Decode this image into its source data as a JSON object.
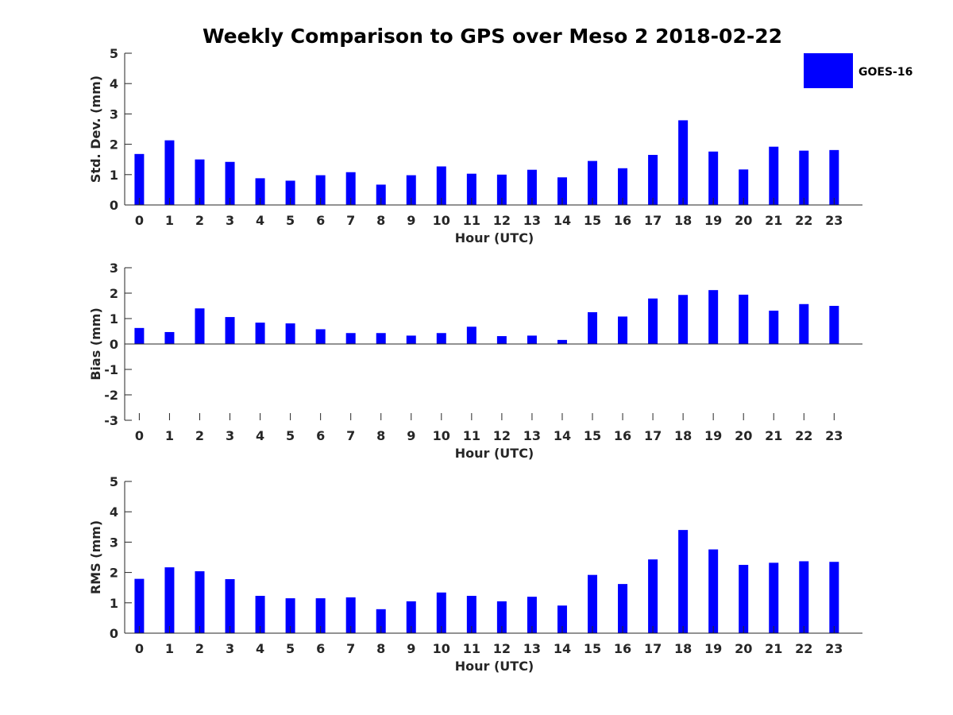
{
  "title": "Weekly Comparison to GPS over Meso 2 2018-02-22",
  "legend": {
    "label": "GOES-16",
    "placement": "top-right"
  },
  "colors": {
    "bar": "#0000FF",
    "axis": "#262626"
  },
  "chart_data": [
    {
      "type": "bar",
      "name": "std_dev",
      "xlabel": "Hour (UTC)",
      "ylabel": "Std. Dev. (mm)",
      "categories": [
        "0",
        "1",
        "2",
        "3",
        "4",
        "5",
        "6",
        "7",
        "8",
        "9",
        "10",
        "11",
        "12",
        "13",
        "14",
        "15",
        "16",
        "17",
        "18",
        "19",
        "20",
        "21",
        "22",
        "23"
      ],
      "series": [
        {
          "name": "GOES-16",
          "values": [
            1.68,
            2.13,
            1.5,
            1.42,
            0.88,
            0.8,
            0.98,
            1.08,
            0.67,
            0.98,
            1.27,
            1.03,
            1.0,
            1.16,
            0.91,
            1.45,
            1.21,
            1.65,
            2.79,
            1.76,
            1.17,
            1.92,
            1.79,
            1.81
          ]
        }
      ],
      "ylim": [
        0,
        5
      ],
      "yticks": [
        0,
        1,
        2,
        3,
        4,
        5
      ],
      "grid": false
    },
    {
      "type": "bar",
      "name": "bias",
      "xlabel": "Hour (UTC)",
      "ylabel": "Bias (mm)",
      "categories": [
        "0",
        "1",
        "2",
        "3",
        "4",
        "5",
        "6",
        "7",
        "8",
        "9",
        "10",
        "11",
        "12",
        "13",
        "14",
        "15",
        "16",
        "17",
        "18",
        "19",
        "20",
        "21",
        "22",
        "23"
      ],
      "series": [
        {
          "name": "GOES-16",
          "values": [
            0.63,
            0.47,
            1.4,
            1.06,
            0.84,
            0.81,
            0.58,
            0.43,
            0.43,
            0.33,
            0.43,
            0.68,
            0.31,
            0.33,
            0.16,
            1.25,
            1.08,
            1.79,
            1.93,
            2.12,
            1.94,
            1.31,
            1.57,
            1.5
          ]
        }
      ],
      "ylim": [
        -3,
        3
      ],
      "yticks": [
        -3,
        -2,
        -1,
        0,
        1,
        2,
        3
      ],
      "grid": false
    },
    {
      "type": "bar",
      "name": "rms",
      "xlabel": "Hour (UTC)",
      "ylabel": "RMS (mm)",
      "categories": [
        "0",
        "1",
        "2",
        "3",
        "4",
        "5",
        "6",
        "7",
        "8",
        "9",
        "10",
        "11",
        "12",
        "13",
        "14",
        "15",
        "16",
        "17",
        "18",
        "19",
        "20",
        "21",
        "22",
        "23"
      ],
      "series": [
        {
          "name": "GOES-16",
          "values": [
            1.79,
            2.17,
            2.04,
            1.78,
            1.23,
            1.15,
            1.15,
            1.18,
            0.79,
            1.05,
            1.34,
            1.23,
            1.05,
            1.2,
            0.91,
            1.92,
            1.62,
            2.43,
            3.4,
            2.76,
            2.25,
            2.32,
            2.37,
            2.35
          ]
        }
      ],
      "ylim": [
        0,
        5
      ],
      "yticks": [
        0,
        1,
        2,
        3,
        4,
        5
      ],
      "grid": false
    }
  ]
}
